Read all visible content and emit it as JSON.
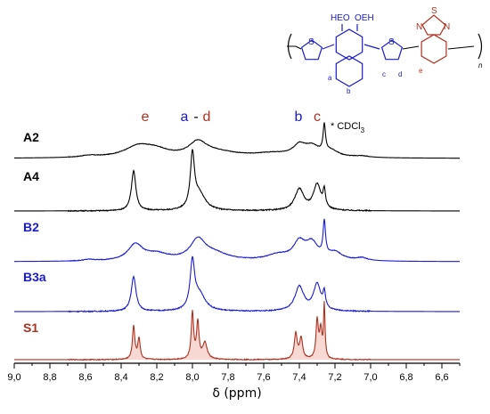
{
  "chart_data": {
    "type": "line",
    "title": "",
    "xlabel": "δ (ppm)",
    "ylabel": "",
    "xlim": [
      9.0,
      6.5
    ],
    "x_ticks": [
      "9,0",
      "8,8",
      "8,6",
      "8,4",
      "8,2",
      "8,0",
      "7,8",
      "7,6",
      "7,4",
      "7,2",
      "7,0",
      "6,8",
      "6,6"
    ],
    "x_tick_values": [
      9.0,
      8.8,
      8.6,
      8.4,
      8.2,
      8.0,
      7.8,
      7.6,
      7.4,
      7.2,
      7.0,
      6.8,
      6.6
    ],
    "series": [
      {
        "name": "A2",
        "color": "#000000",
        "peaks": [
          [
            8.58,
            0.06,
            0.06
          ],
          [
            8.3,
            0.4,
            0.1
          ],
          [
            8.2,
            0.18,
            0.08
          ],
          [
            7.97,
            0.48,
            0.06
          ],
          [
            7.86,
            0.18,
            0.14
          ],
          [
            7.55,
            0.14,
            0.14
          ],
          [
            7.4,
            0.36,
            0.04
          ],
          [
            7.33,
            0.34,
            0.05
          ],
          [
            7.26,
            0.95,
            0.008
          ],
          [
            7.22,
            0.2,
            0.05
          ],
          [
            7.05,
            0.05,
            0.05
          ]
        ]
      },
      {
        "name": "A4",
        "color": "#000000",
        "peaks": [
          [
            8.33,
            0.75,
            0.015
          ],
          [
            8.0,
            1.0,
            0.014
          ],
          [
            7.96,
            0.3,
            0.04
          ],
          [
            7.4,
            0.4,
            0.03
          ],
          [
            7.3,
            0.48,
            0.025
          ],
          [
            7.26,
            0.32,
            0.008
          ]
        ]
      },
      {
        "name": "B2",
        "color": "#1a1ad0",
        "peaks": [
          [
            8.58,
            0.04,
            0.04
          ],
          [
            8.32,
            0.45,
            0.05
          ],
          [
            8.2,
            0.18,
            0.08
          ],
          [
            7.97,
            0.55,
            0.05
          ],
          [
            7.88,
            0.2,
            0.1
          ],
          [
            7.52,
            0.16,
            0.08
          ],
          [
            7.4,
            0.48,
            0.04
          ],
          [
            7.33,
            0.45,
            0.04
          ],
          [
            7.26,
            0.95,
            0.008
          ],
          [
            7.2,
            0.22,
            0.05
          ],
          [
            7.05,
            0.08,
            0.04
          ]
        ]
      },
      {
        "name": "B3a",
        "color": "#1a1ad0",
        "peaks": [
          [
            8.33,
            0.68,
            0.016
          ],
          [
            8.0,
            0.92,
            0.015
          ],
          [
            7.96,
            0.32,
            0.04
          ],
          [
            7.4,
            0.48,
            0.03
          ],
          [
            7.3,
            0.52,
            0.025
          ],
          [
            7.26,
            0.3,
            0.008
          ]
        ]
      },
      {
        "name": "S1",
        "color": "#b03020",
        "peaks": [
          [
            8.33,
            0.72,
            0.008
          ],
          [
            8.3,
            0.45,
            0.008
          ],
          [
            8.0,
            1.0,
            0.008
          ],
          [
            7.97,
            0.78,
            0.008
          ],
          [
            7.93,
            0.35,
            0.015
          ],
          [
            7.42,
            0.55,
            0.01
          ],
          [
            7.39,
            0.45,
            0.01
          ],
          [
            7.3,
            0.82,
            0.008
          ],
          [
            7.28,
            0.6,
            0.008
          ],
          [
            7.26,
            1.15,
            0.005
          ]
        ]
      }
    ],
    "peak_labels": [
      {
        "text": "e",
        "color": "#b03020"
      },
      {
        "text": "a",
        "color": "#1a1ad0"
      },
      {
        "text": " - ",
        "color": "#000000"
      },
      {
        "text": "d",
        "color": "#b03020"
      },
      {
        "text": "b",
        "color": "#1a1ad0"
      },
      {
        "text": "c",
        "color": "#b03020"
      }
    ],
    "annotation": {
      "prefix": "* CDCl",
      "subscript": "3"
    },
    "legend": "inline labels left of each trace"
  },
  "structure": {
    "hydroxyl_left": "HEO",
    "hydroxyl_right": "OEH",
    "thiophene_atom": "S",
    "thiadiazole_s": "S",
    "thiadiazole_n1": "N",
    "thiadiazole_n2": "N",
    "label_a": "a",
    "label_b": "b",
    "label_c": "c",
    "label_d": "d",
    "label_e": "e",
    "repeat": "n"
  }
}
